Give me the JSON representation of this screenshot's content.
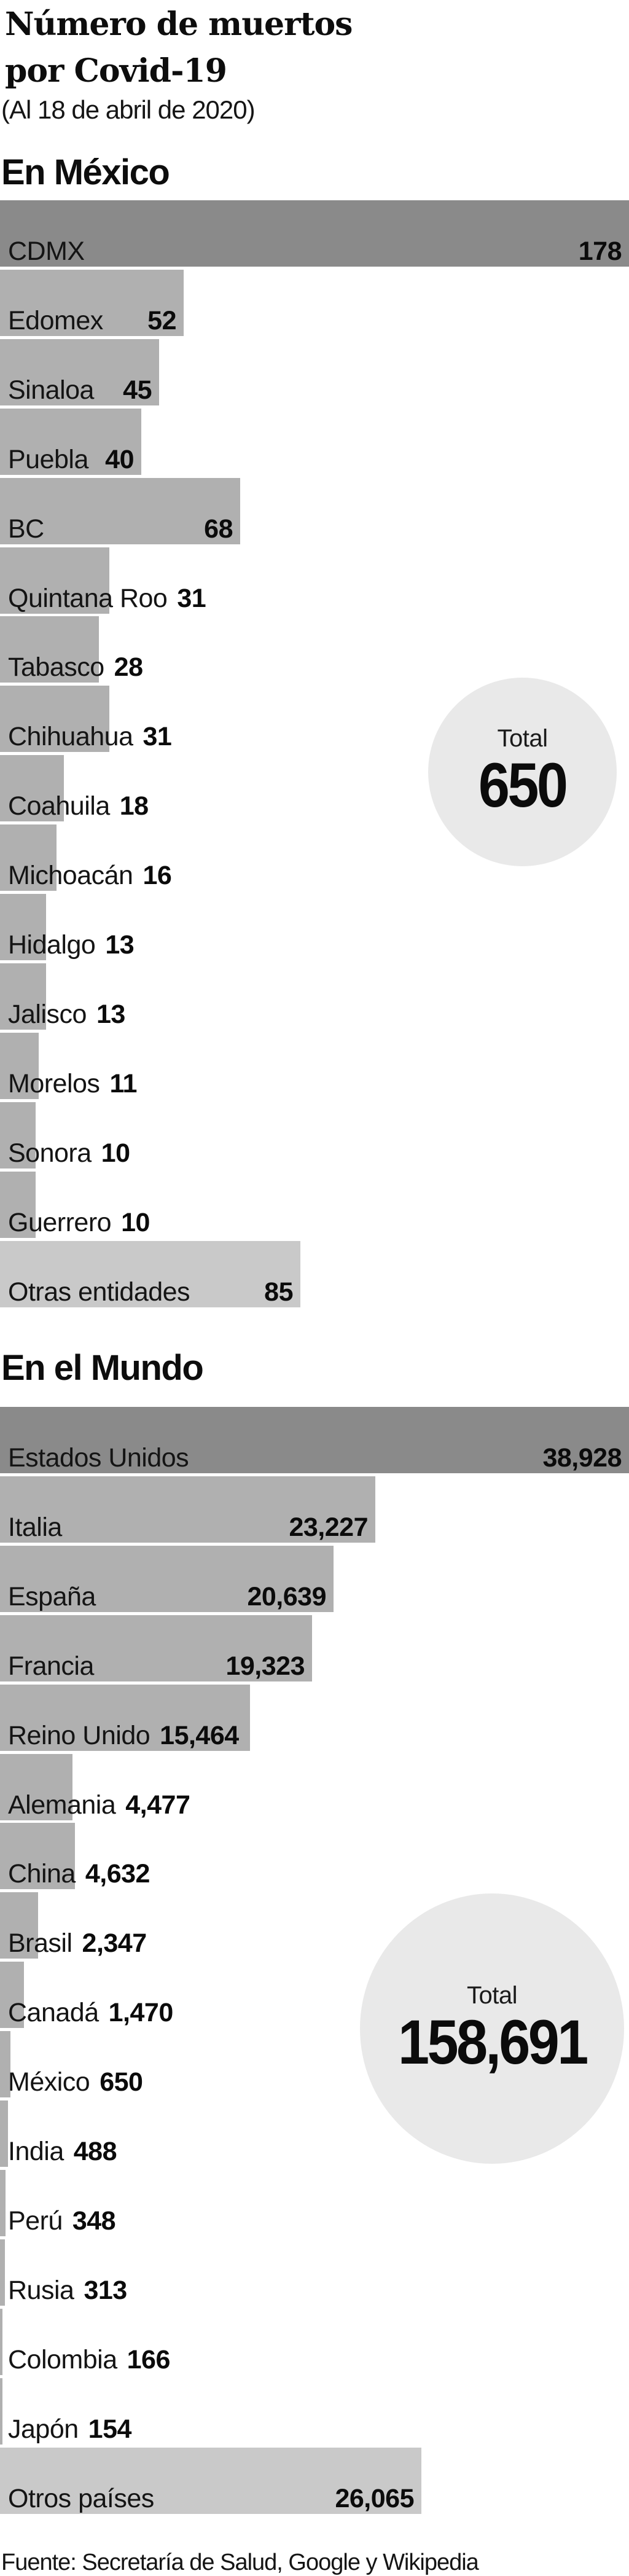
{
  "page": {
    "title_line1": "Número de muertos",
    "title_line2": "por Covid-19",
    "subtitle": "(Al 18 de abril de 2020)",
    "footer": "Fuente: Secretaría de Salud, Google y Wikipedia"
  },
  "colors": {
    "bar_dark": "#8a8a8a",
    "bar_mid": "#b0b0b0",
    "bar_light": "#c9c9c9",
    "circle": "#e9e9e9",
    "background": "#ffffff",
    "text": "#111111"
  },
  "chart_data": [
    {
      "type": "bar",
      "orientation": "horizontal",
      "title": "En México",
      "max_value": 178,
      "grid": false,
      "total": {
        "label": "Total",
        "value": "650"
      },
      "bars": [
        {
          "label": "CDMX",
          "value": 178,
          "display": "178",
          "shade": "dark",
          "value_placement": "bar-right"
        },
        {
          "label": "Edomex",
          "value": 52,
          "display": "52",
          "shade": "mid",
          "value_placement": "bar-right"
        },
        {
          "label": "Sinaloa",
          "value": 45,
          "display": "45",
          "shade": "mid",
          "value_placement": "bar-right"
        },
        {
          "label": "Puebla",
          "value": 40,
          "display": "40",
          "shade": "mid",
          "value_placement": "bar-right"
        },
        {
          "label": "BC",
          "value": 68,
          "display": "68",
          "shade": "mid",
          "value_placement": "bar-right"
        },
        {
          "label": "Quintana Roo",
          "value": 31,
          "display": "31",
          "shade": "mid",
          "value_placement": "after-label"
        },
        {
          "label": "Tabasco",
          "value": 28,
          "display": "28",
          "shade": "mid",
          "value_placement": "after-label"
        },
        {
          "label": "Chihuahua",
          "value": 31,
          "display": "31",
          "shade": "mid",
          "value_placement": "after-label"
        },
        {
          "label": "Coahuila",
          "value": 18,
          "display": "18",
          "shade": "mid",
          "value_placement": "after-label"
        },
        {
          "label": "Michoacán",
          "value": 16,
          "display": "16",
          "shade": "mid",
          "value_placement": "after-label"
        },
        {
          "label": "Hidalgo",
          "value": 13,
          "display": "13",
          "shade": "mid",
          "value_placement": "after-label"
        },
        {
          "label": "Jalisco",
          "value": 13,
          "display": "13",
          "shade": "mid",
          "value_placement": "after-label"
        },
        {
          "label": "Morelos",
          "value": 11,
          "display": "11",
          "shade": "mid",
          "value_placement": "after-label"
        },
        {
          "label": "Sonora",
          "value": 10,
          "display": "10",
          "shade": "mid",
          "value_placement": "after-label"
        },
        {
          "label": "Guerrero",
          "value": 10,
          "display": "10",
          "shade": "mid",
          "value_placement": "after-label"
        },
        {
          "label": "Otras entidades",
          "value": 85,
          "display": "85",
          "shade": "light",
          "value_placement": "bar-right"
        }
      ]
    },
    {
      "type": "bar",
      "orientation": "horizontal",
      "title": "En el Mundo",
      "max_value": 38928,
      "grid": false,
      "total": {
        "label": "Total",
        "value": "158,691"
      },
      "bars": [
        {
          "label": "Estados Unidos",
          "value": 38928,
          "display": "38,928",
          "shade": "dark",
          "value_placement": "bar-right"
        },
        {
          "label": "Italia",
          "value": 23227,
          "display": "23,227",
          "shade": "mid",
          "value_placement": "bar-right"
        },
        {
          "label": "España",
          "value": 20639,
          "display": "20,639",
          "shade": "mid",
          "value_placement": "bar-right"
        },
        {
          "label": "Francia",
          "value": 19323,
          "display": "19,323",
          "shade": "mid",
          "value_placement": "bar-right"
        },
        {
          "label": "Reino Unido",
          "value": 15464,
          "display": "15,464",
          "shade": "mid",
          "value_placement": "after-label"
        },
        {
          "label": "Alemania",
          "value": 4477,
          "display": "4,477",
          "shade": "mid",
          "value_placement": "after-label"
        },
        {
          "label": "China",
          "value": 4632,
          "display": "4,632",
          "shade": "mid",
          "value_placement": "after-label"
        },
        {
          "label": "Brasil",
          "value": 2347,
          "display": "2,347",
          "shade": "mid",
          "value_placement": "after-label"
        },
        {
          "label": "Canadá",
          "value": 1470,
          "display": "1,470",
          "shade": "mid",
          "value_placement": "after-label"
        },
        {
          "label": "México",
          "value": 650,
          "display": "650",
          "shade": "mid",
          "value_placement": "after-label"
        },
        {
          "label": "India",
          "value": 488,
          "display": "488",
          "shade": "mid",
          "value_placement": "after-label"
        },
        {
          "label": "Perú",
          "value": 348,
          "display": "348",
          "shade": "mid",
          "value_placement": "after-label"
        },
        {
          "label": "Rusia",
          "value": 313,
          "display": "313",
          "shade": "mid",
          "value_placement": "after-label"
        },
        {
          "label": "Colombia",
          "value": 166,
          "display": "166",
          "shade": "mid",
          "value_placement": "after-label"
        },
        {
          "label": "Japón",
          "value": 154,
          "display": "154",
          "shade": "mid",
          "value_placement": "after-label"
        },
        {
          "label": "Otros países",
          "value": 26065,
          "display": "26,065",
          "shade": "light",
          "value_placement": "bar-right"
        }
      ]
    }
  ]
}
